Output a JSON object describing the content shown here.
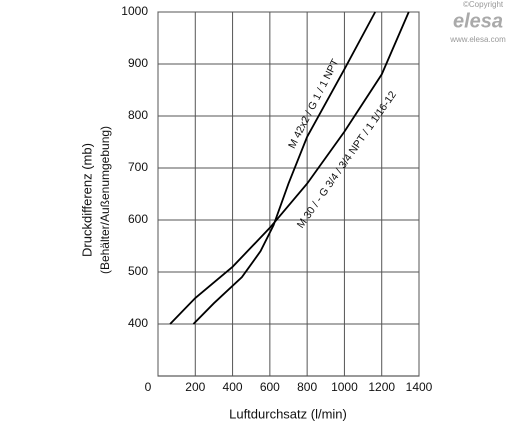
{
  "chart_data": {
    "type": "line",
    "xlabel": "Luftdurchsatz (l/min)",
    "ylabel": [
      "Druckdifferenz (mb)",
      "(Behälter/Außenumgebung)"
    ],
    "xlim": [
      0,
      1400
    ],
    "xticks": [
      0,
      200,
      400,
      600,
      800,
      1000,
      1200,
      1400
    ],
    "ylim": [
      300,
      1000
    ],
    "yticks": [
      400,
      500,
      600,
      700,
      800,
      900,
      1000
    ],
    "grid": true,
    "series": [
      {
        "name": "M 42x2 / G 1 / 1 NPT",
        "color": "#000000",
        "x": [
          190,
          300,
          450,
          550,
          620,
          700,
          800,
          1000,
          1165
        ],
        "values": [
          400,
          440,
          490,
          540,
          590,
          670,
          760,
          890,
          1000
        ]
      },
      {
        "name": "M 30 / - G 3/4 / 3/4 NPT / 1 1/16-12",
        "color": "#000000",
        "x": [
          65,
          200,
          400,
          600,
          800,
          1000,
          1200,
          1345
        ],
        "values": [
          400,
          450,
          510,
          585,
          670,
          770,
          880,
          1000
        ]
      }
    ],
    "logo": {
      "copyright": "©Copyright",
      "brand": "elesa",
      "url": "www.elesa.com"
    }
  }
}
